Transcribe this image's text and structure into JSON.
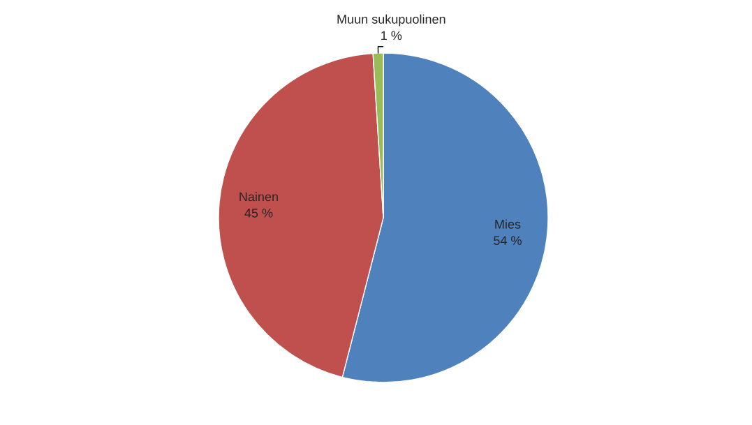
{
  "chart_data": {
    "type": "pie",
    "categories": [
      "Mies",
      "Nainen",
      "Muun sukupuolinen"
    ],
    "values": [
      54,
      45,
      1
    ],
    "colors": [
      "#4f81bd",
      "#c0504d",
      "#9bbb59"
    ],
    "value_labels": [
      "54 %",
      "45 %",
      "1 %"
    ]
  }
}
